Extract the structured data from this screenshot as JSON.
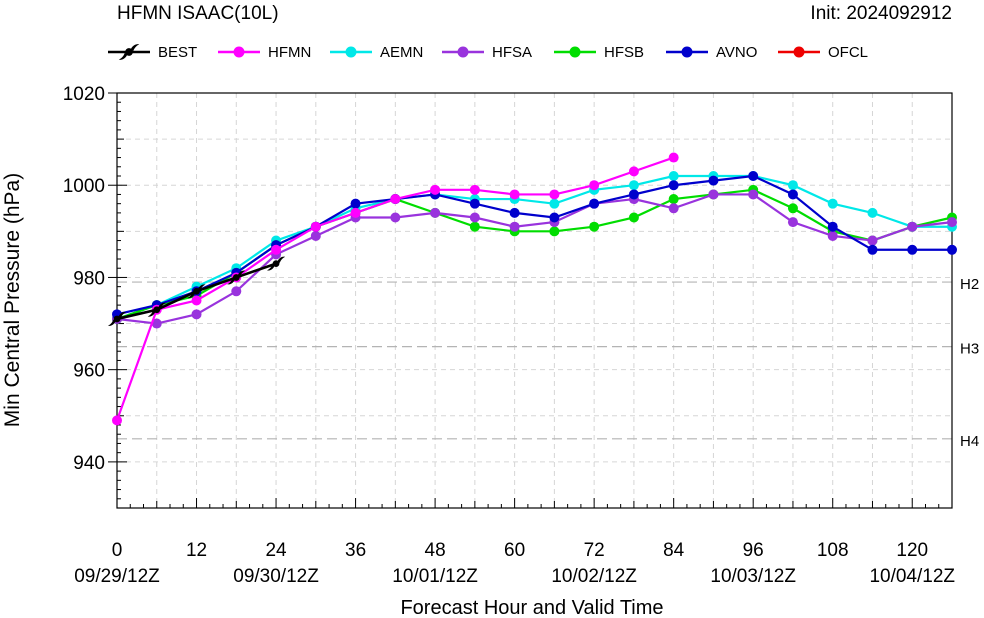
{
  "chart_data": {
    "type": "line",
    "title_left": "HFMN ISAAC(10L)",
    "title_right": "Init: 2024092912",
    "xlabel": "Forecast Hour and Valid Time",
    "ylabel": "Min Central Pressure (hPa)",
    "xlim": [
      0,
      126
    ],
    "ylim": [
      930,
      1020
    ],
    "x_ticks": [
      0,
      12,
      24,
      36,
      48,
      60,
      72,
      84,
      96,
      108,
      120
    ],
    "x_tick_labels": [
      "0",
      "12",
      "24",
      "36",
      "48",
      "60",
      "72",
      "84",
      "96",
      "108",
      "120"
    ],
    "date_ticks": [
      {
        "x": 0,
        "label": "09/29/12Z"
      },
      {
        "x": 24,
        "label": "09/30/12Z"
      },
      {
        "x": 48,
        "label": "10/01/12Z"
      },
      {
        "x": 72,
        "label": "10/02/12Z"
      },
      {
        "x": 96,
        "label": "10/03/12Z"
      },
      {
        "x": 120,
        "label": "10/04/12Z"
      }
    ],
    "y_ticks": [
      940,
      960,
      980,
      1000,
      1020
    ],
    "y_tick_labels": [
      "940",
      "960",
      "980",
      "1000",
      "1020"
    ],
    "thresholds": [
      {
        "y": 979,
        "label": "H2"
      },
      {
        "y": 965,
        "label": "H3"
      },
      {
        "y": 945,
        "label": "H4"
      }
    ],
    "grid": true,
    "legend_position": "top",
    "series": [
      {
        "name": "BEST",
        "color": "#000000",
        "marker": "hurricane-symbol",
        "x": [
          0,
          6,
          12,
          18,
          24
        ],
        "y": [
          971,
          973,
          977,
          980,
          983
        ]
      },
      {
        "name": "HFMN",
        "color": "#ff00ff",
        "marker": "circle",
        "x": [
          0,
          6,
          12,
          18,
          24,
          30,
          36,
          42,
          48,
          54,
          60,
          66,
          72,
          78,
          84
        ],
        "y": [
          949,
          973,
          975,
          980,
          986,
          991,
          994,
          997,
          999,
          999,
          998,
          998,
          1000,
          1003,
          1006
        ]
      },
      {
        "name": "AEMN",
        "color": "#00e8e8",
        "marker": "circle",
        "x": [
          0,
          6,
          12,
          18,
          24,
          30,
          36,
          42,
          48,
          54,
          60,
          66,
          72,
          78,
          84,
          90,
          96,
          102,
          108,
          114,
          120,
          126
        ],
        "y": [
          971,
          974,
          978,
          982,
          988,
          991,
          995,
          997,
          998,
          997,
          997,
          996,
          999,
          1000,
          1002,
          1002,
          1002,
          1000,
          996,
          994,
          991,
          991
        ]
      },
      {
        "name": "HFSA",
        "color": "#9933dd",
        "marker": "circle",
        "x": [
          0,
          6,
          12,
          18,
          24,
          30,
          36,
          42,
          48,
          54,
          60,
          66,
          72,
          78,
          84,
          90,
          96,
          102,
          108,
          114,
          120,
          126
        ],
        "y": [
          971,
          970,
          972,
          977,
          985,
          989,
          993,
          993,
          994,
          993,
          991,
          992,
          996,
          997,
          995,
          998,
          998,
          992,
          989,
          988,
          991,
          992
        ]
      },
      {
        "name": "HFSB",
        "color": "#00dd00",
        "marker": "circle",
        "x": [
          0,
          6,
          12,
          18,
          24,
          30,
          36,
          42,
          48,
          54,
          60,
          66,
          72,
          78,
          84,
          90,
          96,
          102,
          108,
          114,
          120,
          126
        ],
        "y": [
          971,
          974,
          976,
          981,
          987,
          991,
          994,
          997,
          994,
          991,
          990,
          990,
          991,
          993,
          997,
          998,
          999,
          995,
          990,
          988,
          991,
          993
        ]
      },
      {
        "name": "AVNO",
        "color": "#0000cc",
        "marker": "circle",
        "x": [
          0,
          6,
          12,
          18,
          24,
          30,
          36,
          42,
          48,
          54,
          60,
          66,
          72,
          78,
          84,
          90,
          96,
          102,
          108,
          114,
          120,
          126
        ],
        "y": [
          972,
          974,
          977,
          981,
          987,
          991,
          996,
          997,
          998,
          996,
          994,
          993,
          996,
          998,
          1000,
          1001,
          1002,
          998,
          991,
          986,
          986,
          986
        ]
      },
      {
        "name": "OFCL",
        "color": "#ee0000",
        "marker": "circle",
        "x": [],
        "y": []
      }
    ]
  }
}
